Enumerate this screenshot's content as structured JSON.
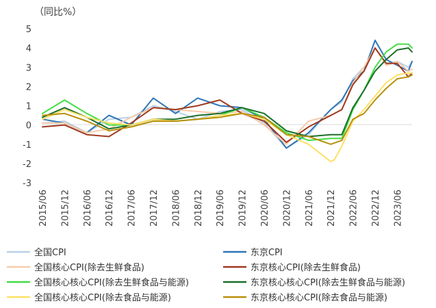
{
  "chart_data": {
    "type": "line",
    "ylabel": "（同比%）",
    "ylim": [
      -3,
      5
    ],
    "yticks": [
      5,
      4,
      3,
      2,
      1,
      0,
      -1,
      -2,
      -3
    ],
    "x_start": "2015-06",
    "x_end": "2023-10",
    "x_tick_labels": [
      "2015/06",
      "2015/12",
      "2016/06",
      "2016/12",
      "2017/06",
      "2017/12",
      "2018/06",
      "2018/12",
      "2019/06",
      "2019/12",
      "2020/06",
      "2020/12",
      "2021/06",
      "2021/12",
      "2022/06",
      "2022/12",
      "2023/06"
    ],
    "grid": false,
    "legend_position": "bottom",
    "series": [
      {
        "name": "全国CPI",
        "color": "#b8d0e8",
        "points": [
          [
            "2015-06",
            0.1
          ],
          [
            "2015-12",
            0.2
          ],
          [
            "2016-06",
            -0.4
          ],
          [
            "2016-12",
            0.3
          ],
          [
            "2017-06",
            0.4
          ],
          [
            "2017-12",
            1.0
          ],
          [
            "2018-06",
            0.7
          ],
          [
            "2018-12",
            0.3
          ],
          [
            "2019-06",
            0.7
          ],
          [
            "2019-12",
            0.8
          ],
          [
            "2020-06",
            0.1
          ],
          [
            "2020-12",
            -1.2
          ],
          [
            "2021-06",
            -0.5
          ],
          [
            "2021-12",
            0.8
          ],
          [
            "2022-03",
            1.2
          ],
          [
            "2022-06",
            2.4
          ],
          [
            "2022-09",
            3.0
          ],
          [
            "2022-12",
            4.0
          ],
          [
            "2023-03",
            3.2
          ],
          [
            "2023-06",
            3.3
          ],
          [
            "2023-09",
            3.0
          ],
          [
            "2023-10",
            3.3
          ]
        ]
      },
      {
        "name": "东京CPI",
        "color": "#2e75b6",
        "points": [
          [
            "2015-06",
            0.3
          ],
          [
            "2015-12",
            0.1
          ],
          [
            "2016-06",
            -0.4
          ],
          [
            "2016-12",
            0.5
          ],
          [
            "2017-06",
            0.0
          ],
          [
            "2017-12",
            1.4
          ],
          [
            "2018-06",
            0.6
          ],
          [
            "2018-12",
            1.4
          ],
          [
            "2019-06",
            1.0
          ],
          [
            "2019-12",
            0.9
          ],
          [
            "2020-06",
            0.3
          ],
          [
            "2020-12",
            -1.2
          ],
          [
            "2021-06",
            -0.4
          ],
          [
            "2021-12",
            0.8
          ],
          [
            "2022-03",
            1.3
          ],
          [
            "2022-06",
            2.3
          ],
          [
            "2022-09",
            2.8
          ],
          [
            "2022-12",
            4.4
          ],
          [
            "2023-03",
            3.4
          ],
          [
            "2023-06",
            3.1
          ],
          [
            "2023-09",
            2.8
          ],
          [
            "2023-10",
            3.3
          ]
        ]
      },
      {
        "name": "全国核心CPI(除去生鲜食品)",
        "color": "#f8cba8",
        "points": [
          [
            "2015-06",
            0.1
          ],
          [
            "2015-12",
            0.1
          ],
          [
            "2016-06",
            -0.4
          ],
          [
            "2016-12",
            -0.2
          ],
          [
            "2017-06",
            0.4
          ],
          [
            "2017-12",
            0.9
          ],
          [
            "2018-06",
            0.8
          ],
          [
            "2018-12",
            0.7
          ],
          [
            "2019-06",
            0.6
          ],
          [
            "2019-12",
            0.7
          ],
          [
            "2020-06",
            0.0
          ],
          [
            "2020-12",
            -1.0
          ],
          [
            "2021-06",
            0.2
          ],
          [
            "2021-12",
            0.5
          ],
          [
            "2022-03",
            0.8
          ],
          [
            "2022-06",
            2.2
          ],
          [
            "2022-09",
            3.0
          ],
          [
            "2022-12",
            4.0
          ],
          [
            "2023-03",
            3.1
          ],
          [
            "2023-06",
            3.3
          ],
          [
            "2023-09",
            2.8
          ],
          [
            "2023-10",
            2.9
          ]
        ]
      },
      {
        "name": "东京核心CPI(除去生鲜食品)",
        "color": "#a0391f",
        "points": [
          [
            "2015-06",
            -0.1
          ],
          [
            "2015-12",
            0.0
          ],
          [
            "2016-06",
            -0.5
          ],
          [
            "2016-12",
            -0.6
          ],
          [
            "2017-06",
            0.1
          ],
          [
            "2017-12",
            0.9
          ],
          [
            "2018-06",
            0.8
          ],
          [
            "2018-12",
            1.0
          ],
          [
            "2019-06",
            1.3
          ],
          [
            "2019-12",
            0.6
          ],
          [
            "2020-06",
            0.2
          ],
          [
            "2020-12",
            -0.9
          ],
          [
            "2021-06",
            -0.1
          ],
          [
            "2021-12",
            0.5
          ],
          [
            "2022-03",
            0.8
          ],
          [
            "2022-06",
            2.1
          ],
          [
            "2022-09",
            2.8
          ],
          [
            "2022-12",
            4.0
          ],
          [
            "2023-03",
            3.2
          ],
          [
            "2023-06",
            3.2
          ],
          [
            "2023-09",
            2.5
          ],
          [
            "2023-10",
            2.7
          ]
        ]
      },
      {
        "name": "全国核心核心CPI(除去生鲜食品与能源)",
        "color": "#44dd44",
        "points": [
          [
            "2015-06",
            0.6
          ],
          [
            "2015-12",
            1.3
          ],
          [
            "2016-06",
            0.6
          ],
          [
            "2016-12",
            0.0
          ],
          [
            "2017-06",
            0.0
          ],
          [
            "2017-12",
            0.3
          ],
          [
            "2018-06",
            0.2
          ],
          [
            "2018-12",
            0.3
          ],
          [
            "2019-06",
            0.5
          ],
          [
            "2019-12",
            0.9
          ],
          [
            "2020-06",
            0.4
          ],
          [
            "2020-12",
            -0.4
          ],
          [
            "2021-06",
            -0.8
          ],
          [
            "2021-12",
            -0.7
          ],
          [
            "2022-03",
            -0.7
          ],
          [
            "2022-06",
            0.8
          ],
          [
            "2022-09",
            1.8
          ],
          [
            "2022-12",
            3.0
          ],
          [
            "2023-03",
            3.8
          ],
          [
            "2023-06",
            4.2
          ],
          [
            "2023-09",
            4.2
          ],
          [
            "2023-10",
            4.0
          ]
        ]
      },
      {
        "name": "东京核心核心CPI(除去生鲜食品与能源)",
        "color": "#1b6e2a",
        "points": [
          [
            "2015-06",
            0.4
          ],
          [
            "2015-12",
            0.9
          ],
          [
            "2016-06",
            0.4
          ],
          [
            "2016-12",
            -0.2
          ],
          [
            "2017-06",
            0.0
          ],
          [
            "2017-12",
            0.3
          ],
          [
            "2018-06",
            0.3
          ],
          [
            "2018-12",
            0.5
          ],
          [
            "2019-06",
            0.6
          ],
          [
            "2019-12",
            0.9
          ],
          [
            "2020-06",
            0.6
          ],
          [
            "2020-12",
            -0.3
          ],
          [
            "2021-06",
            -0.6
          ],
          [
            "2021-12",
            -0.5
          ],
          [
            "2022-03",
            -0.5
          ],
          [
            "2022-06",
            0.9
          ],
          [
            "2022-09",
            1.8
          ],
          [
            "2022-12",
            2.8
          ],
          [
            "2023-03",
            3.4
          ],
          [
            "2023-06",
            3.9
          ],
          [
            "2023-09",
            4.0
          ],
          [
            "2023-10",
            3.8
          ]
        ]
      },
      {
        "name": "全国核心核心CPI(除去食品与能源)",
        "color": "#ffe066",
        "points": [
          [
            "2015-06",
            0.3
          ],
          [
            "2015-12",
            0.8
          ],
          [
            "2016-06",
            0.4
          ],
          [
            "2016-12",
            0.1
          ],
          [
            "2017-06",
            0.0
          ],
          [
            "2017-12",
            0.3
          ],
          [
            "2018-06",
            0.2
          ],
          [
            "2018-12",
            0.3
          ],
          [
            "2019-06",
            0.5
          ],
          [
            "2019-12",
            0.6
          ],
          [
            "2020-06",
            0.3
          ],
          [
            "2020-12",
            -0.5
          ],
          [
            "2021-06",
            -1.0
          ],
          [
            "2021-12",
            -1.9
          ],
          [
            "2022-01",
            -1.8
          ],
          [
            "2022-03",
            -1.1
          ],
          [
            "2022-06",
            0.2
          ],
          [
            "2022-09",
            0.8
          ],
          [
            "2022-12",
            1.5
          ],
          [
            "2023-03",
            2.2
          ],
          [
            "2023-06",
            2.6
          ],
          [
            "2023-09",
            2.7
          ],
          [
            "2023-10",
            2.7
          ]
        ]
      },
      {
        "name": "东京核心核心CPI(除去食品与能源)",
        "color": "#b8900b",
        "points": [
          [
            "2015-06",
            0.5
          ],
          [
            "2015-12",
            0.6
          ],
          [
            "2016-06",
            0.2
          ],
          [
            "2016-12",
            -0.3
          ],
          [
            "2017-06",
            -0.1
          ],
          [
            "2017-12",
            0.2
          ],
          [
            "2018-06",
            0.2
          ],
          [
            "2018-12",
            0.3
          ],
          [
            "2019-06",
            0.4
          ],
          [
            "2019-12",
            0.6
          ],
          [
            "2020-06",
            0.4
          ],
          [
            "2020-12",
            -0.5
          ],
          [
            "2021-06",
            -0.6
          ],
          [
            "2021-12",
            -1.0
          ],
          [
            "2022-03",
            -0.8
          ],
          [
            "2022-06",
            0.3
          ],
          [
            "2022-09",
            0.6
          ],
          [
            "2022-12",
            1.3
          ],
          [
            "2023-03",
            1.9
          ],
          [
            "2023-06",
            2.4
          ],
          [
            "2023-09",
            2.5
          ],
          [
            "2023-10",
            2.6
          ]
        ]
      }
    ],
    "legend": [
      {
        "label": "全国CPI",
        "color": "#b8d0e8"
      },
      {
        "label": "东京CPI",
        "color": "#2e75b6"
      },
      {
        "label": "全国核心CPI(除去生鲜食品)",
        "color": "#f8cba8"
      },
      {
        "label": "东京核心CPI(除去生鲜食品)",
        "color": "#a0391f"
      },
      {
        "label": "全国核心核心CPI(除去生鲜食品与能源)",
        "color": "#44dd44"
      },
      {
        "label": "东京核心核心CPI(除去生鲜食品与能源)",
        "color": "#1b6e2a"
      },
      {
        "label": "全国核心核心CPI(除去食品与能源)",
        "color": "#ffe066"
      },
      {
        "label": "东京核心核心CPI(除去食品与能源)",
        "color": "#b8900b"
      }
    ]
  }
}
